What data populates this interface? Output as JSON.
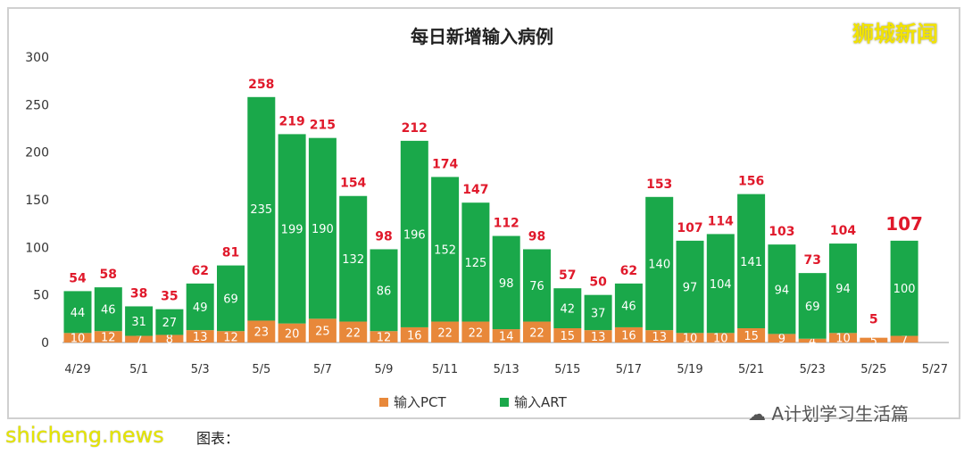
{
  "chart_data": {
    "type": "bar",
    "stacked": true,
    "title": "每日新增输入病例",
    "categories": [
      "4/29",
      "4/30",
      "5/1",
      "5/2",
      "5/3",
      "5/4",
      "5/5",
      "5/6",
      "5/7",
      "5/8",
      "5/9",
      "5/10",
      "5/11",
      "5/12",
      "5/13",
      "5/14",
      "5/15",
      "5/16",
      "5/17",
      "5/18",
      "5/19",
      "5/20",
      "5/21",
      "5/22",
      "5/23",
      "5/24",
      "5/25",
      "5/26",
      "5/27"
    ],
    "xtick_labels": [
      "4/29",
      "5/1",
      "5/3",
      "5/5",
      "5/7",
      "5/9",
      "5/11",
      "5/13",
      "5/15",
      "5/17",
      "5/19",
      "5/21",
      "5/23",
      "5/25",
      "5/27"
    ],
    "series": [
      {
        "name": "输入PCT",
        "color": "#e8883a",
        "values": [
          10,
          12,
          7,
          8,
          13,
          12,
          23,
          20,
          25,
          22,
          12,
          16,
          22,
          22,
          14,
          22,
          15,
          13,
          16,
          13,
          10,
          10,
          15,
          9,
          4,
          10,
          5,
          7,
          null
        ]
      },
      {
        "name": "输入ART",
        "color": "#1aa84a",
        "values": [
          44,
          46,
          31,
          27,
          49,
          69,
          235,
          199,
          190,
          132,
          86,
          196,
          152,
          125,
          98,
          76,
          42,
          37,
          46,
          140,
          97,
          104,
          141,
          94,
          69,
          94,
          0,
          100,
          null
        ]
      }
    ],
    "totals": [
      54,
      58,
      38,
      35,
      62,
      81,
      258,
      219,
      215,
      154,
      98,
      212,
      174,
      147,
      112,
      98,
      57,
      50,
      62,
      153,
      107,
      114,
      156,
      103,
      73,
      104,
      5,
      107,
      null
    ],
    "total_label_color": "#e0192b",
    "ylim": [
      0,
      300
    ],
    "yticks": [
      0,
      50,
      100,
      150,
      200,
      250,
      300
    ],
    "grid": false,
    "legend": "bottom"
  },
  "watermarks": {
    "top": "狮城新闻",
    "bottom_right": "A计划学习生活篇",
    "bottom_left": "shicheng.news"
  },
  "footer": "图表："
}
